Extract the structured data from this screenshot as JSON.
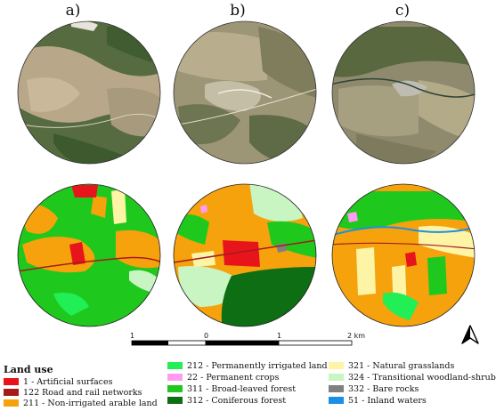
{
  "panels": [
    {
      "label": "a)"
    },
    {
      "label": "b)"
    },
    {
      "label": "c)"
    }
  ],
  "scale_bar": {
    "ticks": [
      "1",
      "0",
      "1",
      "2 km"
    ]
  },
  "legend": {
    "title": "Land use",
    "items": [
      {
        "code_label": "1 - Artificial surfaces",
        "color": "#e8141c"
      },
      {
        "code_label": "122  Road and rail networks",
        "color": "#a51b1b"
      },
      {
        "code_label": "211 - Non-irrigated arable land",
        "color": "#f5a20c"
      },
      {
        "code_label": "212 - Permanently irrigated land",
        "color": "#22ee55"
      },
      {
        "code_label": "22 - Permanent crops",
        "color": "#ff9cf2"
      },
      {
        "code_label": "311 - Broad-leaved forest",
        "color": "#1fc81c"
      },
      {
        "code_label": "312 - Coniferous forest",
        "color": "#0d6e13"
      },
      {
        "code_label": "321 - Natural grasslands",
        "color": "#fdf4a6"
      },
      {
        "code_label": "324 - Transitional woodland-shrub",
        "color": "#c8f5c2"
      },
      {
        "code_label": "332 - Bare rocks",
        "color": "#808080"
      },
      {
        "code_label": "51 - Inland waters",
        "color": "#1a8fe6"
      }
    ]
  }
}
